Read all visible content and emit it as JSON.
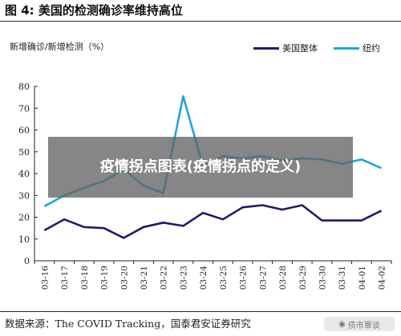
{
  "header": {
    "title": "图 4: 美国的检测确诊率维持高位"
  },
  "chart_data": {
    "type": "line",
    "ylabel": "新增确诊/新增检测（%）",
    "categories": [
      "03-16",
      "03-17",
      "03-18",
      "03-19",
      "03-20",
      "03-21",
      "03-22",
      "03-23",
      "03-24",
      "03-25",
      "03-26",
      "03-27",
      "03-28",
      "03-29",
      "03-30",
      "03-31",
      "04-01",
      "04-02"
    ],
    "ylim": [
      0,
      80
    ],
    "yticks": [
      0,
      10,
      20,
      30,
      40,
      50,
      60,
      70,
      80
    ],
    "grid": false,
    "legend_position": "top-right",
    "series": [
      {
        "name": "美国整体",
        "color": "#1f1a6e",
        "values": [
          14,
          19,
          15.5,
          15,
          10.5,
          15.5,
          17.5,
          16,
          22,
          19,
          24.5,
          25.5,
          23.5,
          25.5,
          18.5,
          18.5,
          18.5,
          23
        ]
      },
      {
        "name": "纽约",
        "color": "#1aa7dc",
        "values": [
          25,
          30,
          33.5,
          36.5,
          42,
          34.5,
          31,
          75.5,
          43.5,
          48,
          47,
          48,
          46,
          47,
          46.5,
          44.5,
          46.5,
          42.5
        ]
      }
    ]
  },
  "overlay": {
    "text": "疫情拐点图表(疫情拐点的定义)"
  },
  "source": {
    "text": "数据来源：The COVID Tracking，国泰君安证券研究"
  },
  "watermark": {
    "icon": "wechat-icon",
    "text": "债市覃谈"
  }
}
